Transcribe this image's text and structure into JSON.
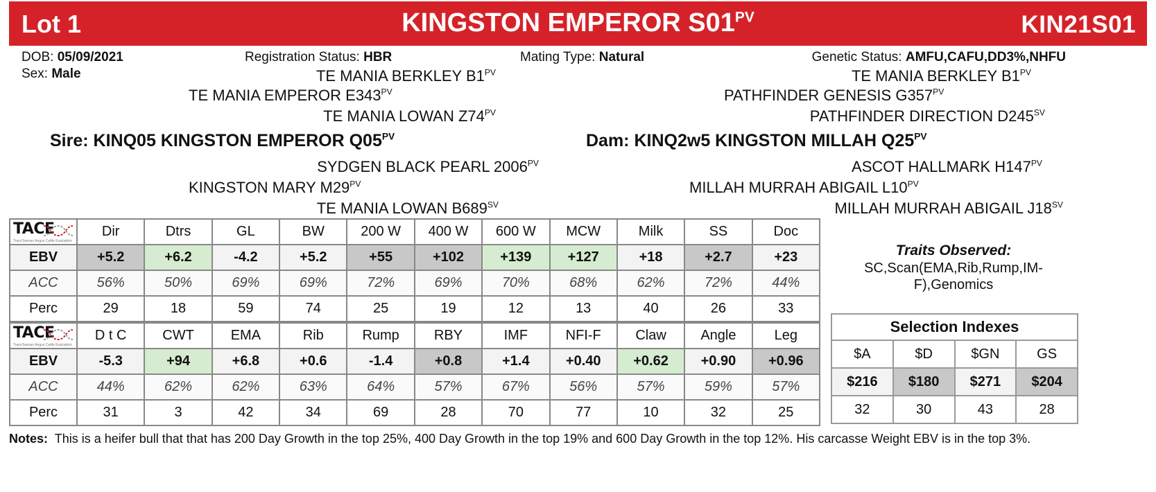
{
  "header": {
    "lot": "Lot 1",
    "title_main": "KINGSTON EMPEROR S01",
    "title_sup": "PV",
    "code": "KIN21S01"
  },
  "info": {
    "dob_label": "DOB:",
    "dob": "05/09/2021",
    "reg_label": "Registration Status:",
    "reg": "HBR",
    "mating_label": "Mating Type:",
    "mating": "Natural",
    "genetic_label": "Genetic Status:",
    "genetic": "AMFU,CAFU,DD3%,NHFU",
    "sex_label": "Sex:",
    "sex": "Male"
  },
  "pedigree": {
    "sire_sire_sire": {
      "name": "TE MANIA BERKLEY B1",
      "sup": "PV"
    },
    "sire_sire": {
      "name": "TE MANIA EMPEROR E343",
      "sup": "PV"
    },
    "sire_sire_dam": {
      "name": "TE MANIA LOWAN Z74",
      "sup": "PV"
    },
    "sire": {
      "label": "Sire:",
      "name": "KINQ05 KINGSTON EMPEROR Q05",
      "sup": "PV"
    },
    "sire_dam_sire": {
      "name": "SYDGEN BLACK PEARL 2006",
      "sup": "PV"
    },
    "sire_dam": {
      "name": "KINGSTON MARY M29",
      "sup": "PV"
    },
    "sire_dam_dam": {
      "name": "TE MANIA LOWAN B689",
      "sup": "SV"
    },
    "dam_sire_sire": {
      "name": "TE MANIA BERKLEY B1",
      "sup": "PV"
    },
    "dam_sire": {
      "name": "PATHFINDER GENESIS G357",
      "sup": "PV"
    },
    "dam_sire_dam": {
      "name": "PATHFINDER DIRECTION D245",
      "sup": "SV"
    },
    "dam": {
      "label": "Dam:",
      "name": "KINQ2w5 KINGSTON MILLAH Q25",
      "sup": "PV"
    },
    "dam_dam_sire": {
      "name": "ASCOT HALLMARK H147",
      "sup": "PV"
    },
    "dam_dam": {
      "name": "MILLAH MURRAH ABIGAIL L10",
      "sup": "PV"
    },
    "dam_dam_dam": {
      "name": "MILLAH MURRAH ABIGAIL J18",
      "sup": "SV"
    }
  },
  "logo": {
    "text": "TACE",
    "tagline": "TransTasman Angus Cattle Evaluation"
  },
  "row_labels": {
    "ebv": "EBV",
    "acc": "ACC",
    "perc": "Perc"
  },
  "ebv_table_1": {
    "headers": [
      "Dir",
      "Dtrs",
      "GL",
      "BW",
      "200 W",
      "400 W",
      "600 W",
      "MCW",
      "Milk",
      "SS",
      "Doc"
    ],
    "ebv": [
      "+5.2",
      "+6.2",
      "-4.2",
      "+5.2",
      "+55",
      "+102",
      "+139",
      "+127",
      "+18",
      "+2.7",
      "+23"
    ],
    "acc": [
      "56%",
      "50%",
      "69%",
      "69%",
      "72%",
      "69%",
      "70%",
      "68%",
      "62%",
      "72%",
      "44%"
    ],
    "perc": [
      "29",
      "18",
      "59",
      "74",
      "25",
      "19",
      "12",
      "13",
      "40",
      "26",
      "33"
    ],
    "highlight": [
      "grey",
      "green",
      "",
      "",
      "grey",
      "grey",
      "green",
      "green",
      "",
      "grey",
      ""
    ]
  },
  "ebv_table_2": {
    "headers": [
      "D t C",
      "CWT",
      "EMA",
      "Rib",
      "Rump",
      "RBY",
      "IMF",
      "NFI-F",
      "Claw",
      "Angle",
      "Leg"
    ],
    "ebv": [
      "-5.3",
      "+94",
      "+6.8",
      "+0.6",
      "-1.4",
      "+0.8",
      "+1.4",
      "+0.40",
      "+0.62",
      "+0.90",
      "+0.96"
    ],
    "acc": [
      "44%",
      "62%",
      "62%",
      "63%",
      "64%",
      "57%",
      "67%",
      "56%",
      "57%",
      "59%",
      "57%"
    ],
    "perc": [
      "31",
      "3",
      "42",
      "34",
      "69",
      "28",
      "70",
      "77",
      "10",
      "32",
      "25"
    ],
    "highlight": [
      "",
      "green",
      "",
      "",
      "",
      "grey",
      "",
      "",
      "green",
      "",
      "grey"
    ]
  },
  "traits": {
    "title": "Traits Observed:",
    "text": "SC,Scan(EMA,Rib,Rump,IM-F),Genomics"
  },
  "selection": {
    "title": "Selection Indexes",
    "headers": [
      "$A",
      "$D",
      "$GN",
      "GS"
    ],
    "values": [
      "$216",
      "$180",
      "$271",
      "$204"
    ],
    "perc": [
      "32",
      "30",
      "43",
      "28"
    ],
    "highlight": [
      "",
      "grey",
      "",
      "grey"
    ]
  },
  "notes": {
    "label": "Notes:",
    "text": "This is a heifer bull that that has 200 Day Growth in the top 25%, 400 Day Growth in the top 19% and 600 Day Growth in the top 12%. His carcasse Weight EBV is in the top 3%."
  },
  "colors": {
    "header_red": "#d52229",
    "highlight_grey": "#c8c8c8",
    "highlight_green": "#d6ecd0"
  }
}
